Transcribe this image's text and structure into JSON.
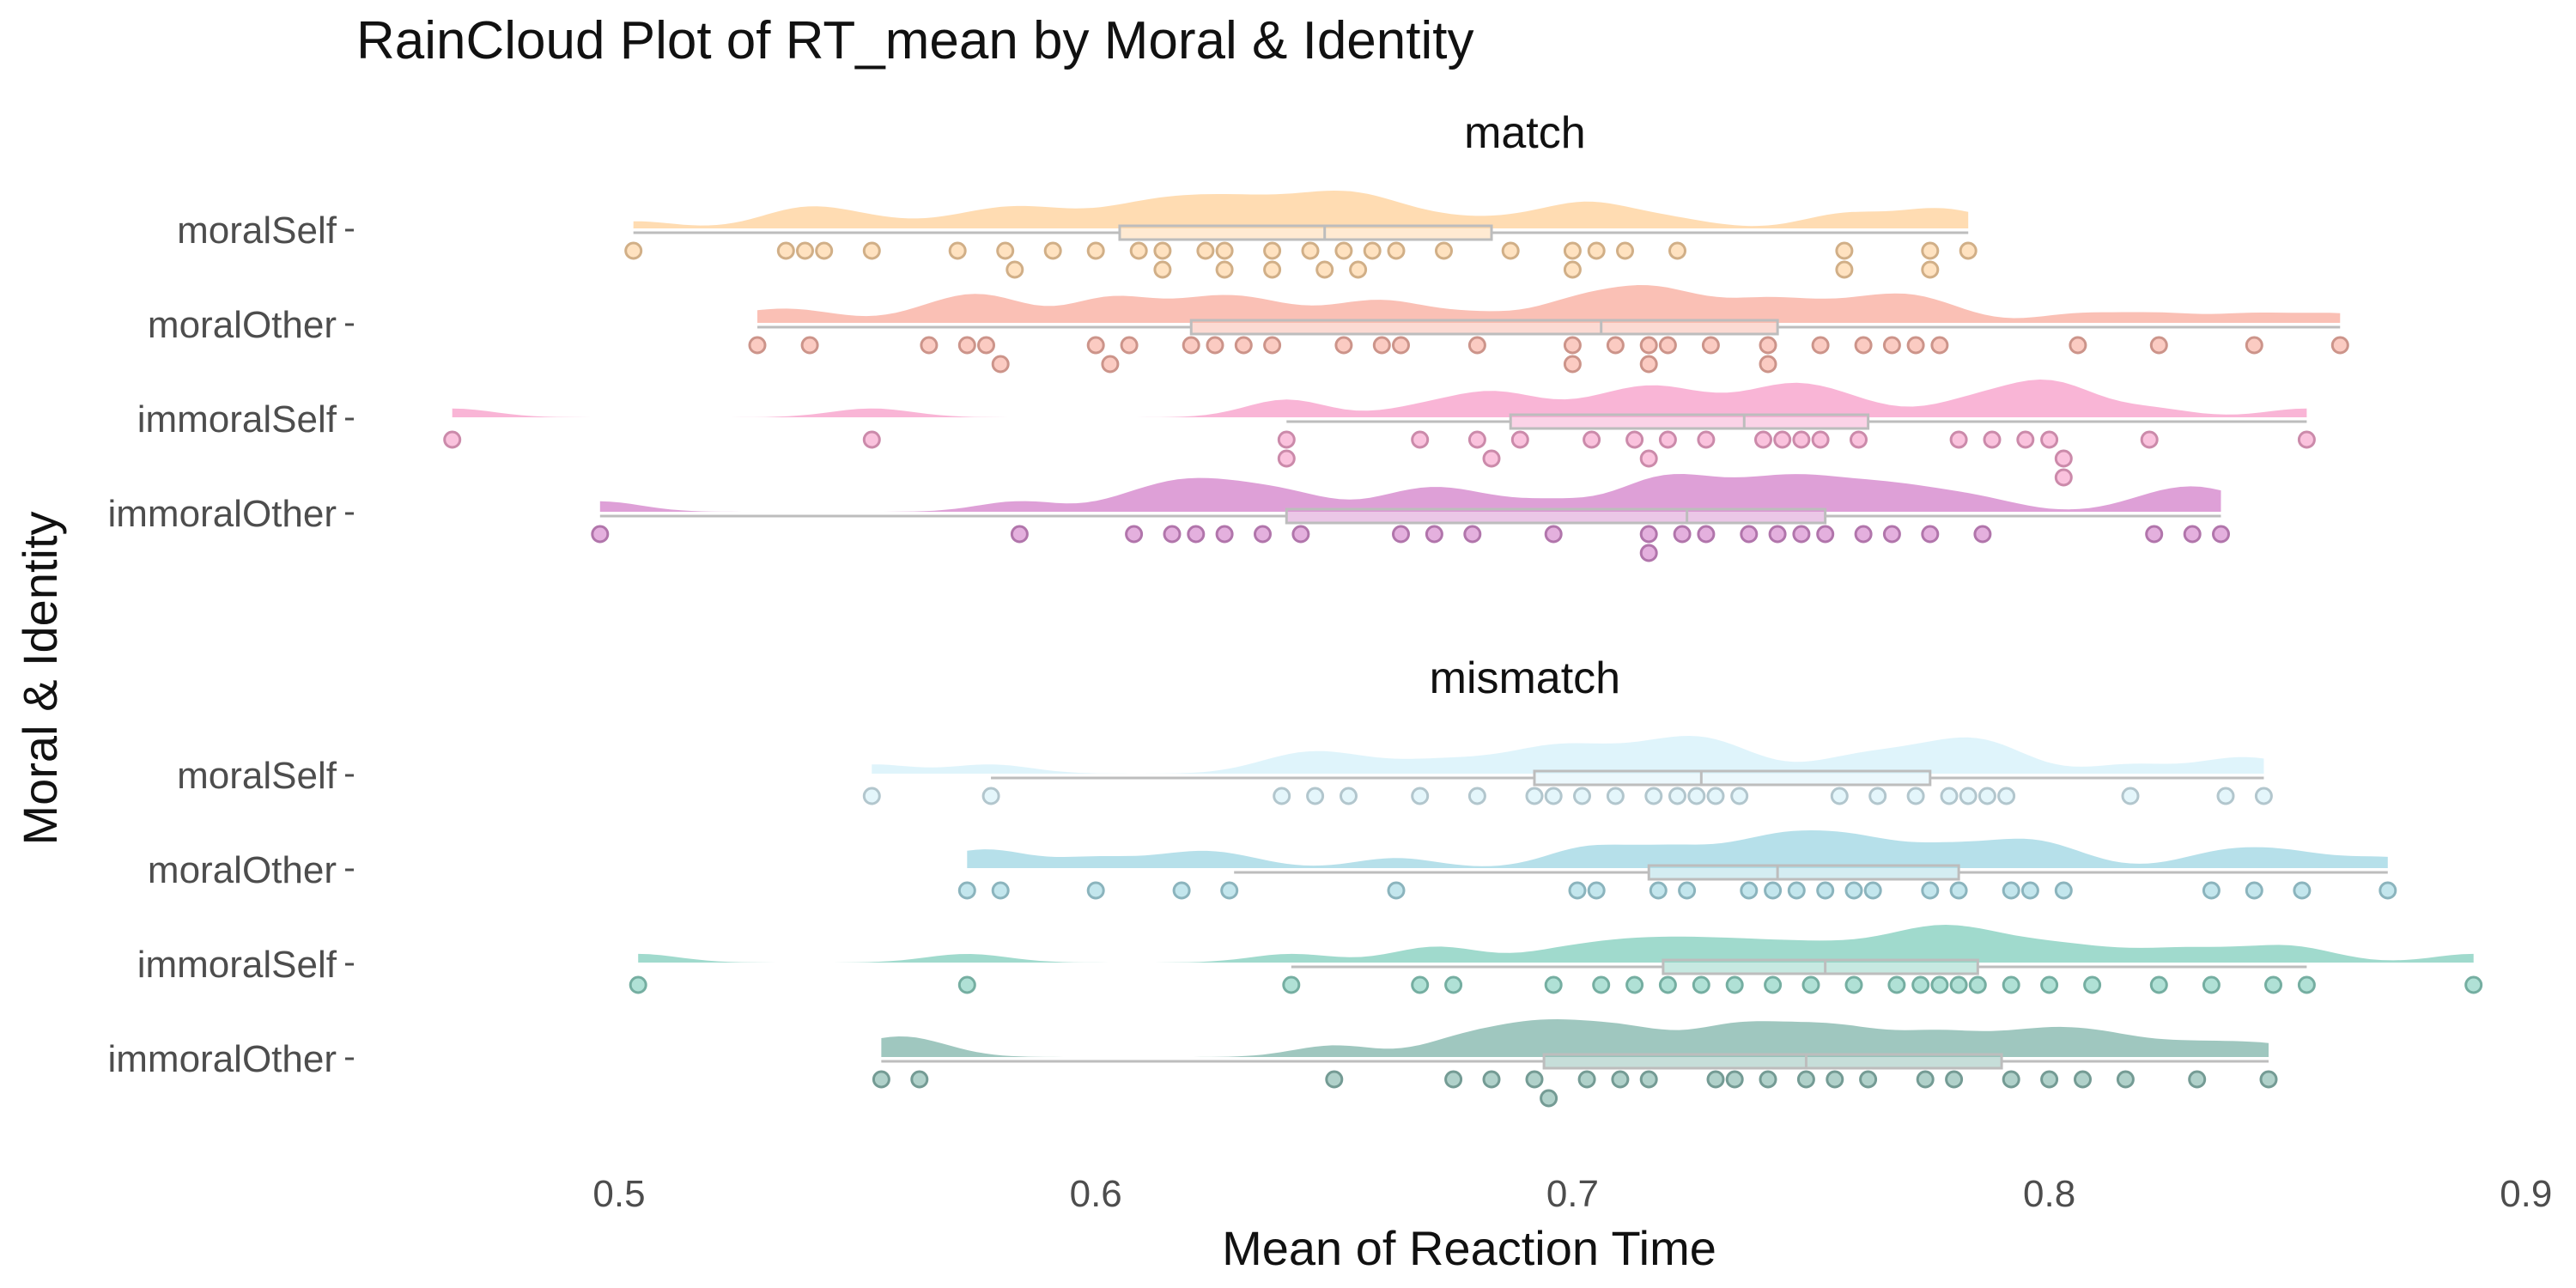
{
  "chart_data": {
    "type": "raincloud",
    "title": "RainCloud Plot of RT_mean by Moral & Identity",
    "xlabel": "Mean of Reaction Time",
    "ylabel": "Moral & Identity",
    "xlim": [
      0.47,
      0.9
    ],
    "x_ticks": [
      "0.5",
      "0.6",
      "0.7",
      "0.8",
      "0.9"
    ],
    "grid": false,
    "legend": "none",
    "facets": [
      {
        "name": "match",
        "categories": [
          {
            "label": "moralSelf",
            "color": "#FFD6A5",
            "box": {
              "min": 0.503,
              "q1": 0.605,
              "median": 0.648,
              "q3": 0.683,
              "max": 0.783
            },
            "points": [
              0.503,
              0.535,
              0.539,
              0.543,
              0.553,
              0.571,
              0.581,
              0.583,
              0.591,
              0.6,
              0.609,
              0.614,
              0.614,
              0.623,
              0.627,
              0.627,
              0.637,
              0.637,
              0.645,
              0.648,
              0.652,
              0.655,
              0.658,
              0.663,
              0.673,
              0.687,
              0.7,
              0.7,
              0.705,
              0.711,
              0.722,
              0.757,
              0.757,
              0.775,
              0.775,
              0.783
            ]
          },
          {
            "label": "moralOther",
            "color": "#F9B5A8",
            "box": {
              "min": 0.529,
              "q1": 0.62,
              "median": 0.706,
              "q3": 0.743,
              "max": 0.861
            },
            "points": [
              0.529,
              0.54,
              0.565,
              0.573,
              0.577,
              0.58,
              0.6,
              0.603,
              0.607,
              0.62,
              0.625,
              0.631,
              0.637,
              0.652,
              0.66,
              0.664,
              0.68,
              0.7,
              0.7,
              0.709,
              0.716,
              0.716,
              0.72,
              0.729,
              0.741,
              0.741,
              0.752,
              0.761,
              0.767,
              0.772,
              0.777,
              0.806,
              0.823,
              0.843,
              0.861
            ]
          },
          {
            "label": "immoralSelf",
            "color": "#F8A8CF",
            "box": {
              "min": 0.64,
              "q1": 0.687,
              "median": 0.736,
              "q3": 0.762,
              "max": 0.854
            },
            "points": [
              0.465,
              0.553,
              0.64,
              0.64,
              0.668,
              0.68,
              0.683,
              0.689,
              0.704,
              0.713,
              0.716,
              0.72,
              0.728,
              0.74,
              0.744,
              0.748,
              0.752,
              0.76,
              0.781,
              0.788,
              0.795,
              0.8,
              0.803,
              0.803,
              0.821,
              0.854
            ]
          },
          {
            "label": "immoralOther",
            "color": "#D88FD0",
            "box": {
              "min": 0.496,
              "q1": 0.64,
              "median": 0.724,
              "q3": 0.753,
              "max": 0.836
            },
            "points": [
              0.496,
              0.584,
              0.608,
              0.616,
              0.621,
              0.627,
              0.635,
              0.643,
              0.664,
              0.671,
              0.679,
              0.696,
              0.716,
              0.716,
              0.723,
              0.728,
              0.737,
              0.743,
              0.748,
              0.753,
              0.761,
              0.767,
              0.775,
              0.786,
              0.822,
              0.83,
              0.836
            ]
          }
        ]
      },
      {
        "name": "mismatch",
        "categories": [
          {
            "label": "moralSelf",
            "color": "#D9F2FA",
            "box": {
              "min": 0.578,
              "q1": 0.692,
              "median": 0.727,
              "q3": 0.775,
              "max": 0.845
            },
            "points": [
              0.553,
              0.578,
              0.639,
              0.646,
              0.653,
              0.668,
              0.68,
              0.692,
              0.696,
              0.702,
              0.709,
              0.717,
              0.722,
              0.726,
              0.73,
              0.735,
              0.756,
              0.764,
              0.772,
              0.779,
              0.783,
              0.787,
              0.791,
              0.817,
              0.837,
              0.845
            ]
          },
          {
            "label": "moralOther",
            "color": "#A9DBE6",
            "box": {
              "min": 0.629,
              "q1": 0.716,
              "median": 0.743,
              "q3": 0.781,
              "max": 0.871
            },
            "points": [
              0.573,
              0.58,
              0.6,
              0.618,
              0.628,
              0.663,
              0.701,
              0.705,
              0.718,
              0.724,
              0.737,
              0.742,
              0.747,
              0.753,
              0.759,
              0.763,
              0.775,
              0.781,
              0.792,
              0.796,
              0.803,
              0.834,
              0.843,
              0.853,
              0.871
            ]
          },
          {
            "label": "immoralSelf",
            "color": "#8FD4C4",
            "box": {
              "min": 0.641,
              "q1": 0.719,
              "median": 0.753,
              "q3": 0.785,
              "max": 0.854
            },
            "points": [
              0.504,
              0.573,
              0.641,
              0.668,
              0.675,
              0.696,
              0.706,
              0.713,
              0.72,
              0.727,
              0.734,
              0.742,
              0.75,
              0.759,
              0.768,
              0.773,
              0.777,
              0.781,
              0.785,
              0.792,
              0.8,
              0.809,
              0.823,
              0.834,
              0.847,
              0.854,
              0.889
            ]
          },
          {
            "label": "immoralOther",
            "color": "#8EBDB4",
            "box": {
              "min": 0.555,
              "q1": 0.694,
              "median": 0.749,
              "q3": 0.79,
              "max": 0.846
            },
            "points": [
              0.555,
              0.563,
              0.65,
              0.675,
              0.683,
              0.692,
              0.695,
              0.703,
              0.71,
              0.716,
              0.73,
              0.734,
              0.741,
              0.749,
              0.755,
              0.762,
              0.774,
              0.78,
              0.792,
              0.8,
              0.807,
              0.816,
              0.831,
              0.846
            ]
          }
        ]
      }
    ]
  }
}
